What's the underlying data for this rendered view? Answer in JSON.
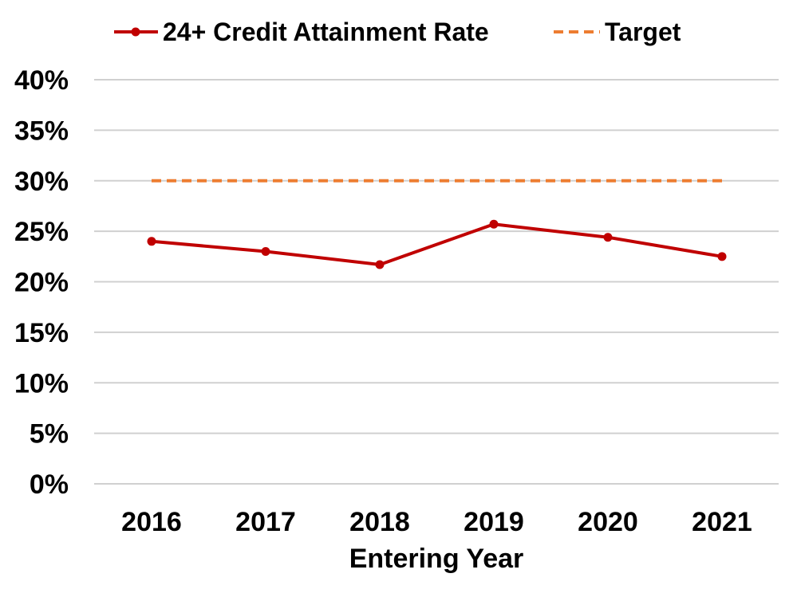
{
  "chart_data": {
    "type": "line",
    "title": "",
    "xlabel": "Entering Year",
    "ylabel": "",
    "categories": [
      "2016",
      "2017",
      "2018",
      "2019",
      "2020",
      "2021"
    ],
    "ylim": [
      0,
      0.4
    ],
    "yticks": [
      0,
      0.05,
      0.1,
      0.15,
      0.2,
      0.25,
      0.3,
      0.35,
      0.4
    ],
    "ytick_labels": [
      "0%",
      "5%",
      "10%",
      "15%",
      "20%",
      "25%",
      "30%",
      "35%",
      "40%"
    ],
    "grid": "horizontal",
    "legend_position": "top",
    "series": [
      {
        "name": "24+ Credit Attainment Rate",
        "values": [
          0.24,
          0.23,
          0.217,
          0.257,
          0.244,
          0.225
        ],
        "color": "#C00000",
        "style": "solid",
        "markers": true
      },
      {
        "name": "Target",
        "values": [
          0.3,
          0.3,
          0.3,
          0.3,
          0.3,
          0.3
        ],
        "color": "#ED7D31",
        "style": "dashed",
        "markers": false
      }
    ],
    "grid_color": "#D0D0D0"
  }
}
